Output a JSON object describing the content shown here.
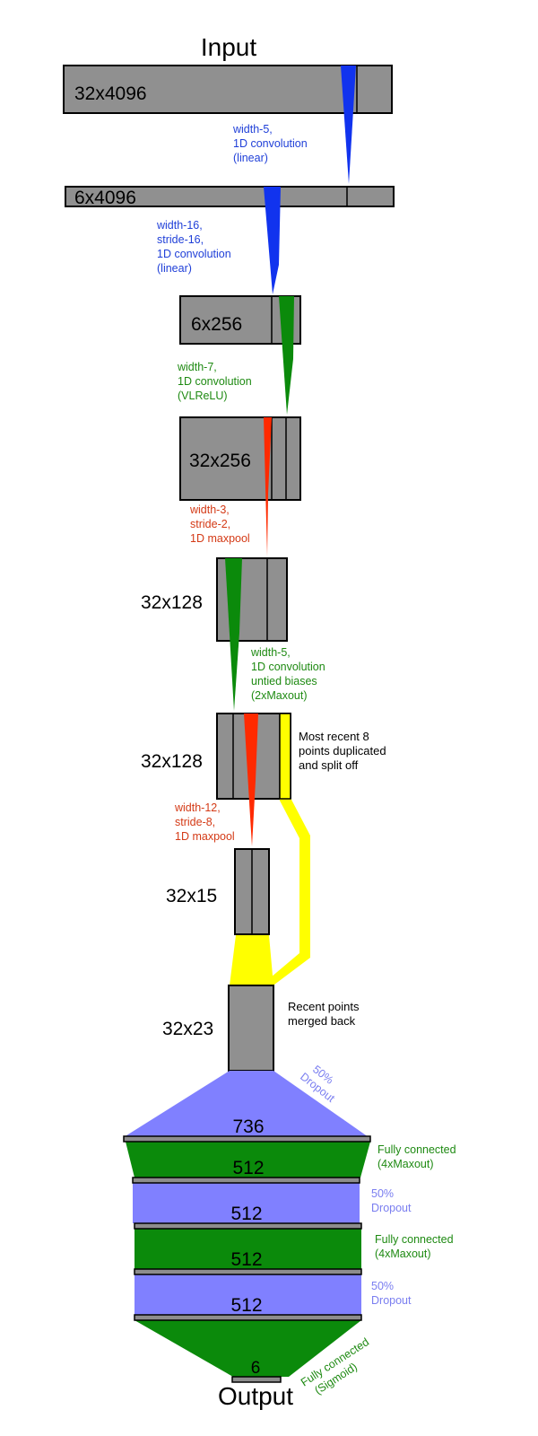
{
  "title_input": "Input",
  "title_output": "Output",
  "colors": {
    "layer_fill": "#909090",
    "conv_linear": "#1133ee",
    "conv_activation": "#0b8a0b",
    "maxpool": "#ff2a00",
    "recent_points": "#ffff00",
    "dropout": "#8080ff",
    "fully_connected": "#0b8a0b"
  },
  "layers": [
    {
      "label": "32x4096"
    },
    {
      "label": "6x4096"
    },
    {
      "label": "6x256"
    },
    {
      "label": "32x256"
    },
    {
      "label": "32x128"
    },
    {
      "label": "32x128"
    },
    {
      "label": "32x15"
    },
    {
      "label": "32x23"
    }
  ],
  "operations": [
    {
      "lines": [
        "width-5,",
        "1D convolution",
        "(linear)"
      ]
    },
    {
      "lines": [
        "width-16,",
        "stride-16,",
        "1D convolution",
        "(linear)"
      ]
    },
    {
      "lines": [
        "width-7,",
        "1D convolution",
        "(VLReLU)"
      ]
    },
    {
      "lines": [
        "width-3,",
        "stride-2,",
        "1D maxpool"
      ]
    },
    {
      "lines": [
        "width-5,",
        "1D convolution",
        "untied biases",
        "(2xMaxout)"
      ]
    },
    {
      "lines": [
        "width-12,",
        "stride-8,",
        "1D maxpool"
      ]
    }
  ],
  "notes": {
    "split": [
      "Most recent 8",
      "points duplicated",
      "and split off"
    ],
    "merge": [
      "Recent points",
      "merged back"
    ]
  },
  "dense_layers": [
    "736",
    "512",
    "512",
    "512",
    "512",
    "6"
  ],
  "dense_ops": {
    "dropout_diag": [
      "50%",
      "Dropout"
    ],
    "fc1": [
      "Fully connected",
      "(4xMaxout)"
    ],
    "drop2": [
      "50%",
      "Dropout"
    ],
    "fc2": [
      "Fully connected",
      "(4xMaxout)"
    ],
    "drop3": [
      "50%",
      "Dropout"
    ],
    "fc_out": [
      "Fully connected",
      "(Sigmoid)"
    ]
  }
}
